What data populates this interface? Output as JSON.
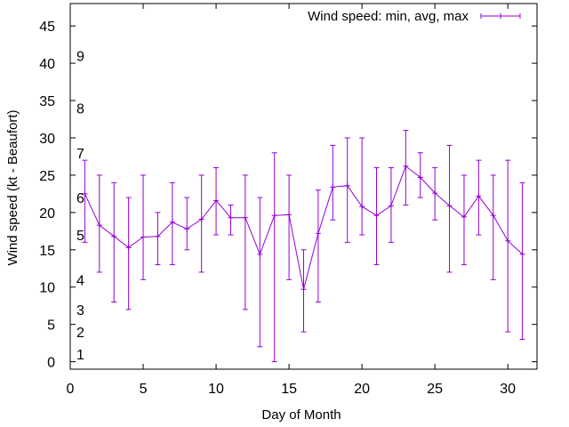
{
  "chart_data": {
    "type": "line",
    "xlabel": "Day of Month",
    "ylabel": "Wind speed (kt - Beaufort)",
    "xlim": [
      0,
      32
    ],
    "ylim": [
      -1,
      48
    ],
    "x_ticks": [
      0,
      5,
      10,
      15,
      20,
      25,
      30
    ],
    "y_ticks": [
      0,
      5,
      10,
      15,
      20,
      25,
      30,
      35,
      40,
      45
    ],
    "grid": false,
    "legend_position": "top-right",
    "series_color": "#9400d3",
    "series": [
      {
        "name": "Wind speed: min, avg, max",
        "error_bars": true,
        "x": [
          1,
          2,
          3,
          4,
          5,
          6,
          7,
          8,
          9,
          10,
          11,
          12,
          13,
          14,
          15,
          16,
          17,
          18,
          19,
          20,
          21,
          22,
          23,
          24,
          25,
          26,
          27,
          28,
          29,
          30,
          31
        ],
        "min": [
          16,
          12,
          8,
          7,
          11,
          13,
          13,
          15,
          12,
          17,
          17,
          7,
          2,
          0,
          11,
          4,
          8,
          19,
          16,
          17,
          13,
          16,
          21,
          22,
          19,
          12,
          13,
          17,
          11,
          4,
          3
        ],
        "avg": [
          22.5,
          18.3,
          16.8,
          15.3,
          16.7,
          16.8,
          18.7,
          17.8,
          19.1,
          21.6,
          19.3,
          19.3,
          14.4,
          19.6,
          19.7,
          9.7,
          17.2,
          23.4,
          23.6,
          20.8,
          19.6,
          20.9,
          26.2,
          24.7,
          22.6,
          20.9,
          19.4,
          22.2,
          19.6,
          16.2,
          14.4
        ],
        "max": [
          27,
          25,
          24,
          22,
          25,
          20,
          24,
          22,
          25,
          26,
          21,
          25,
          22,
          28,
          25,
          15,
          23,
          29,
          30,
          30,
          26,
          26,
          31,
          28,
          26,
          29,
          25,
          27,
          25,
          27,
          24
        ]
      }
    ],
    "annotations": [
      {
        "text": "1",
        "y": 1
      },
      {
        "text": "2",
        "y": 4
      },
      {
        "text": "3",
        "y": 7
      },
      {
        "text": "4",
        "y": 11
      },
      {
        "text": "5",
        "y": 17
      },
      {
        "text": "6",
        "y": 22
      },
      {
        "text": "7",
        "y": 28
      },
      {
        "text": "8",
        "y": 34
      },
      {
        "text": "9",
        "y": 41
      }
    ]
  }
}
